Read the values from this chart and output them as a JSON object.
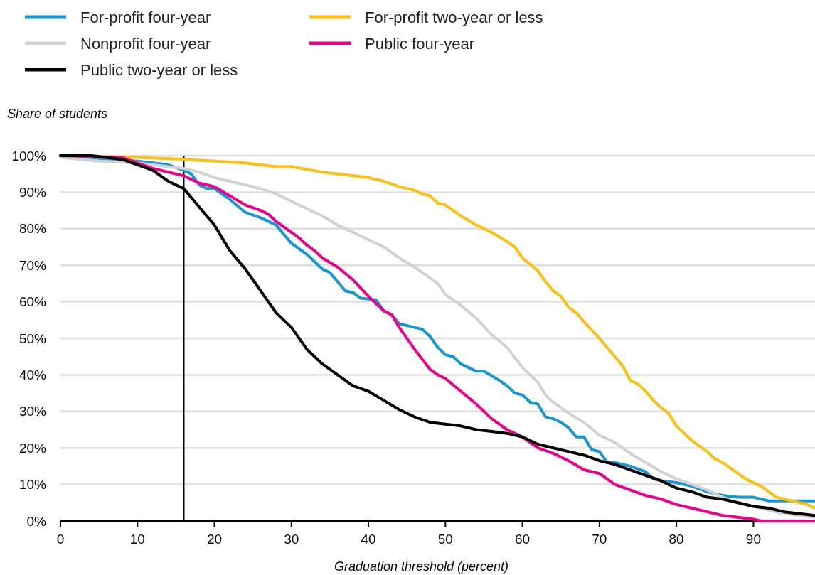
{
  "chart_data": {
    "type": "line",
    "xlabel": "Graduation threshold (percent)",
    "ylabel": "Share of students",
    "xlim": [
      0,
      98
    ],
    "xticks": [
      0,
      10,
      20,
      30,
      40,
      50,
      60,
      70,
      80,
      90
    ],
    "ylim": [
      0,
      100
    ],
    "yticks": [
      {
        "value": 0,
        "label": "0%"
      },
      {
        "value": 10,
        "label": "10%"
      },
      {
        "value": 20,
        "label": "20%"
      },
      {
        "value": 30,
        "label": "30%"
      },
      {
        "value": 40,
        "label": "40%"
      },
      {
        "value": 50,
        "label": "50%"
      },
      {
        "value": 60,
        "label": "60%"
      },
      {
        "value": 70,
        "label": "70%"
      },
      {
        "value": 80,
        "label": "80%"
      },
      {
        "value": 90,
        "label": "90%"
      },
      {
        "value": 100,
        "label": "100%"
      }
    ],
    "grid": "y",
    "legend": "top left",
    "marker": "none",
    "line_style": "solid",
    "ref_lines": [
      {
        "axis": "x",
        "value": 16,
        "color": "#000000"
      }
    ],
    "series": [
      {
        "name": "For-profit four-year",
        "color": "#1696d2",
        "x": [
          0,
          10,
          14,
          16,
          17,
          18,
          19,
          20,
          22,
          24,
          26,
          28,
          30,
          32,
          33,
          34,
          35,
          37,
          38,
          39,
          41,
          42,
          43,
          44,
          46,
          47,
          48,
          49,
          50,
          51,
          52,
          53,
          54,
          55,
          57,
          58,
          59,
          60,
          61,
          62,
          63,
          64,
          65,
          66,
          67,
          68,
          69,
          70,
          71,
          72,
          74,
          76,
          77,
          78,
          80,
          82,
          84,
          86,
          88,
          90,
          92,
          94,
          98
        ],
        "values": [
          100,
          98.5,
          97.5,
          96,
          95,
          92,
          91,
          91,
          88,
          84.5,
          83,
          81,
          76,
          73,
          71,
          69,
          68,
          63,
          62.5,
          61,
          60.5,
          57.5,
          56.5,
          54,
          53,
          52.5,
          50.5,
          47.5,
          45.5,
          45,
          43,
          42,
          41,
          41,
          38.5,
          37,
          35,
          34.5,
          32.5,
          32,
          28.5,
          28,
          27,
          25.5,
          23,
          23,
          19.5,
          19,
          16,
          16,
          15,
          13.5,
          11.5,
          11,
          10.5,
          9.5,
          8,
          7,
          6.5,
          6.5,
          5.5,
          5.5,
          5.5
        ]
      },
      {
        "name": "For-profit two-year or less",
        "color": "#fdbf11",
        "x": [
          0,
          10,
          16,
          20,
          24,
          28,
          30,
          34,
          36,
          38,
          40,
          42,
          44,
          46,
          47,
          48,
          49,
          50,
          52,
          54,
          56,
          58,
          59,
          60,
          62,
          63,
          64,
          65,
          66,
          67,
          68,
          70,
          72,
          73,
          74,
          75,
          76,
          77,
          78,
          79,
          80,
          82,
          84,
          85,
          86,
          88,
          89,
          90,
          91,
          92,
          93,
          95,
          97,
          98
        ],
        "values": [
          100,
          99.5,
          99,
          98.5,
          98,
          97,
          97,
          95.5,
          95,
          94.5,
          94,
          93,
          91.5,
          90.5,
          89.5,
          89,
          87,
          86.5,
          83.5,
          81,
          79,
          76.5,
          75,
          72,
          68.5,
          65.5,
          63,
          61.5,
          58.5,
          57,
          54.5,
          50,
          45,
          42.5,
          38.5,
          37.5,
          35.5,
          33,
          31,
          29.5,
          26,
          22,
          19,
          17,
          16,
          13,
          11.5,
          10.5,
          9.5,
          8,
          6.5,
          5.5,
          4.5,
          3.5
        ]
      },
      {
        "name": "Nonprofit four-year",
        "color": "#d2d2d2",
        "x": [
          0,
          5,
          10,
          16,
          18,
          20,
          22,
          24,
          26,
          28,
          30,
          32,
          34,
          36,
          38,
          40,
          42,
          44,
          46,
          48,
          49,
          50,
          52,
          54,
          56,
          58,
          60,
          62,
          63,
          64,
          66,
          68,
          70,
          72,
          74,
          76,
          78,
          80,
          82,
          84,
          86,
          88,
          90,
          92,
          94,
          98
        ],
        "values": [
          99.5,
          98.5,
          98,
          96.5,
          95.5,
          94,
          93,
          92,
          91,
          89.5,
          87.5,
          85.5,
          83.5,
          81,
          79,
          77,
          75,
          72,
          69.5,
          66.5,
          65,
          62,
          59,
          55.5,
          51,
          47.5,
          42,
          38,
          34.5,
          32.5,
          29.5,
          27,
          23.5,
          21.5,
          18.5,
          16,
          13.5,
          11.5,
          10,
          8.5,
          6.5,
          5,
          4,
          3,
          2,
          1
        ]
      },
      {
        "name": "Public four-year",
        "color": "#ec008b",
        "x": [
          0,
          8,
          10,
          12,
          14,
          16,
          18,
          20,
          22,
          24,
          26,
          27,
          28,
          30,
          31,
          32,
          33,
          34,
          36,
          38,
          40,
          42,
          43,
          44,
          46,
          48,
          49,
          50,
          52,
          54,
          56,
          58,
          60,
          62,
          64,
          66,
          68,
          70,
          72,
          74,
          76,
          78,
          80,
          82,
          84,
          86,
          88,
          90,
          91,
          98
        ],
        "values": [
          100,
          99.5,
          98,
          96.5,
          95.5,
          94.5,
          92.5,
          91.5,
          89,
          86.5,
          85,
          84,
          82,
          79,
          77.5,
          75.5,
          74,
          72,
          69.5,
          66,
          61.5,
          57.5,
          56.5,
          53,
          47,
          41.5,
          40,
          39,
          35.5,
          32,
          28,
          25,
          23,
          20,
          18.5,
          16.5,
          14,
          13,
          10,
          8.5,
          7,
          6,
          4.5,
          3.5,
          2.5,
          1.5,
          1,
          0.5,
          0,
          0
        ]
      },
      {
        "name": "Public two-year or less",
        "color": "#000000",
        "x": [
          0,
          4,
          8,
          10,
          12,
          14,
          16,
          18,
          20,
          22,
          24,
          26,
          28,
          30,
          32,
          34,
          36,
          38,
          40,
          42,
          44,
          46,
          48,
          50,
          52,
          54,
          56,
          58,
          60,
          62,
          64,
          66,
          68,
          70,
          72,
          74,
          76,
          78,
          80,
          82,
          84,
          86,
          88,
          90,
          92,
          94,
          96,
          98
        ],
        "values": [
          100,
          100,
          99,
          97.5,
          96,
          93,
          91,
          86,
          81,
          74,
          69,
          63,
          57,
          53,
          47,
          43,
          40,
          37,
          35.5,
          33,
          30.5,
          28.5,
          27,
          26.5,
          26,
          25,
          24.5,
          24,
          23,
          21,
          20,
          19,
          18,
          16.5,
          15.5,
          14,
          12.5,
          11,
          9,
          8,
          6.5,
          6,
          5,
          4,
          3.5,
          2.5,
          2,
          1.5
        ]
      }
    ]
  }
}
